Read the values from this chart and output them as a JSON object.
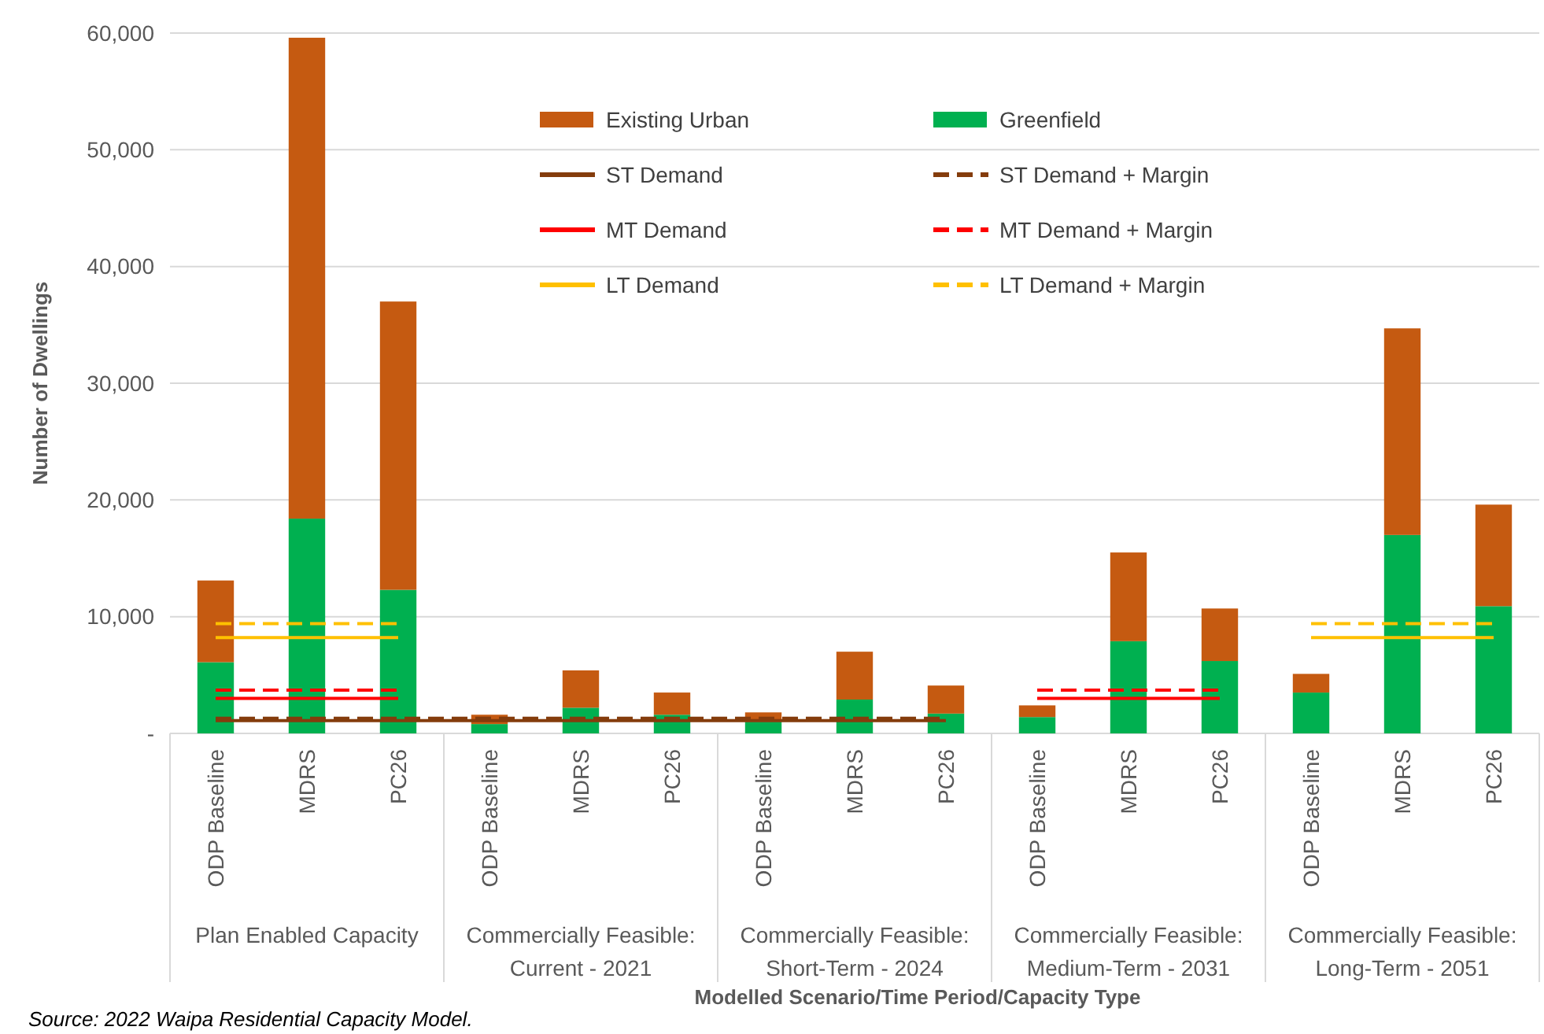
{
  "chart_data": {
    "type": "bar",
    "stacked": true,
    "categories": [
      "ODP Baseline",
      "MDRS",
      "PC26",
      "ODP Baseline",
      "MDRS",
      "PC26",
      "ODP Baseline",
      "MDRS",
      "PC26",
      "ODP Baseline",
      "MDRS",
      "PC26",
      "ODP Baseline",
      "MDRS",
      "PC26"
    ],
    "series": [
      {
        "name": "Greenfield",
        "color": "#00b050",
        "values": [
          6100,
          18400,
          12300,
          800,
          2200,
          1600,
          1000,
          2900,
          1700,
          1400,
          7900,
          6200,
          3500,
          17000,
          10900
        ]
      },
      {
        "name": "Existing Urban",
        "color": "#c55a11",
        "values": [
          7000,
          41200,
          24700,
          800,
          3200,
          1900,
          800,
          4100,
          2400,
          1000,
          7600,
          4500,
          1600,
          17700,
          8700
        ]
      },
      {
        "name": "ST Demand",
        "type": "line",
        "color": "#843c0c",
        "line_style": "solid",
        "values": [
          1100,
          1100,
          1100,
          1100,
          1100,
          1100,
          1100,
          1100,
          1100,
          null,
          null,
          null,
          null,
          null,
          null
        ]
      },
      {
        "name": "ST Demand + Margin",
        "type": "line",
        "color": "#843c0c",
        "line_style": "dashed",
        "values": [
          1300,
          1300,
          1300,
          1300,
          1300,
          1300,
          1300,
          1300,
          1300,
          null,
          null,
          null,
          null,
          null,
          null
        ]
      },
      {
        "name": "MT Demand",
        "type": "line",
        "color": "#ff0000",
        "line_style": "solid",
        "values": [
          3000,
          3000,
          3000,
          null,
          null,
          null,
          null,
          null,
          null,
          3000,
          3000,
          3000,
          null,
          null,
          null
        ]
      },
      {
        "name": "MT Demand + Margin",
        "type": "line",
        "color": "#fe0000",
        "line_style": "dashed",
        "values": [
          3700,
          3700,
          3700,
          null,
          null,
          null,
          null,
          null,
          null,
          3700,
          3700,
          3700,
          null,
          null,
          null
        ]
      },
      {
        "name": "LT Demand",
        "type": "line",
        "color": "#ffc000",
        "line_style": "solid",
        "values": [
          8200,
          8200,
          8200,
          null,
          null,
          null,
          null,
          null,
          null,
          null,
          null,
          null,
          8200,
          8200,
          8200
        ]
      },
      {
        "name": "LT Demand + Margin",
        "type": "line",
        "color": "#ffc000",
        "line_style": "dashed",
        "values": [
          9400,
          9400,
          9400,
          null,
          null,
          null,
          null,
          null,
          null,
          null,
          null,
          null,
          9400,
          9400,
          9400
        ]
      }
    ],
    "ylim": [
      0,
      60000
    ],
    "yticks": [
      {
        "value": 0,
        "label": "-"
      },
      {
        "value": 10000,
        "label": "10,000"
      },
      {
        "value": 20000,
        "label": "20,000"
      },
      {
        "value": 30000,
        "label": "30,000"
      },
      {
        "value": 40000,
        "label": "40,000"
      },
      {
        "value": 50000,
        "label": "50,000"
      },
      {
        "value": 60000,
        "label": "60,000"
      }
    ],
    "ylabel": "Number of Dwellings",
    "xlabel": "Modelled Scenario/Time Period/Capacity Type",
    "grid": "y",
    "legend": "top",
    "annotations": [
      "Source: 2022 Waipa Residential Capacity Model.",
      "Plan Enabled Capacity",
      "Commercially Feasible: Current - 2021",
      "Commercially Feasible: Short-Term - 2024",
      "Commercially Feasible: Medium-Term - 2031",
      "Commercially Feasible: Long-Term - 2051"
    ]
  }
}
